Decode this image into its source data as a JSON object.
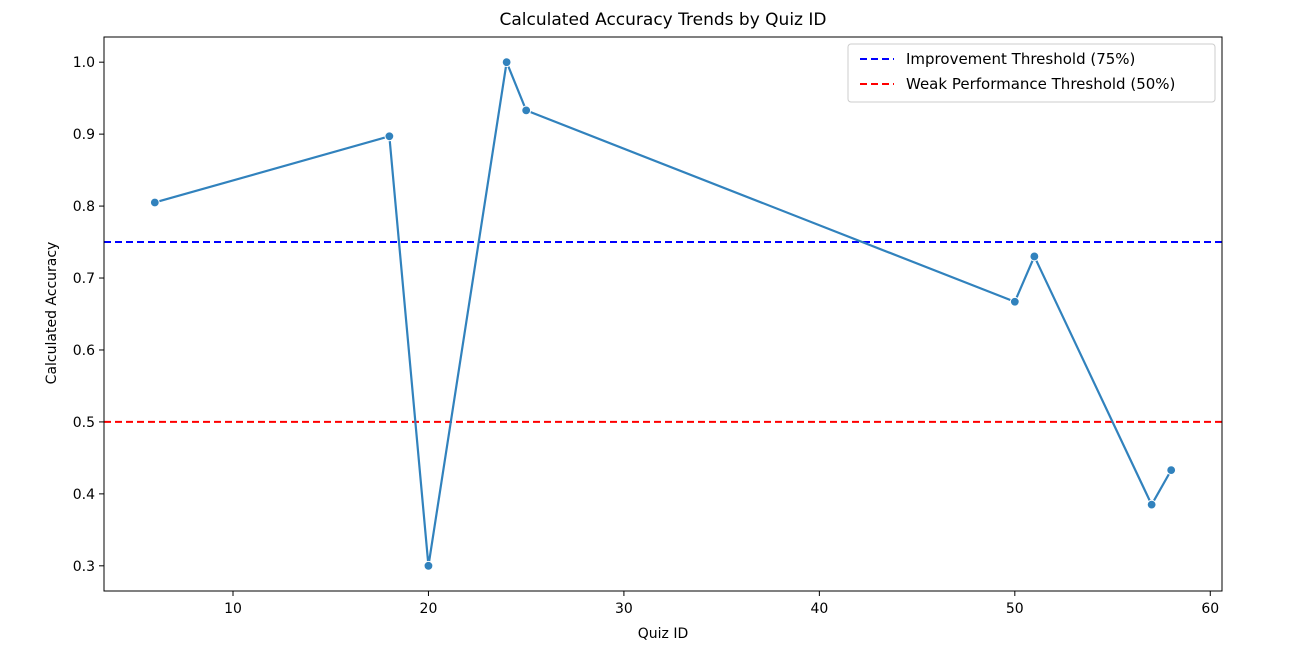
{
  "chart_data": {
    "type": "line",
    "title": "Calculated Accuracy Trends by Quiz ID",
    "xlabel": "Quiz ID",
    "ylabel": "Calculated Accuracy",
    "xlim": [
      3.4,
      60.6
    ],
    "ylim": [
      0.265,
      1.035
    ],
    "xticks": [
      10,
      20,
      30,
      40,
      50,
      60
    ],
    "yticks": [
      0.3,
      0.4,
      0.5,
      0.6,
      0.7,
      0.8,
      0.9,
      1.0
    ],
    "grid": false,
    "legend_position": "top-right",
    "series": [
      {
        "color": "#3182bd",
        "marker": "circle",
        "x": [
          6,
          18,
          20,
          24,
          25,
          50,
          51,
          57,
          58
        ],
        "y": [
          0.805,
          0.897,
          0.3,
          1.0,
          0.933,
          0.667,
          0.73,
          0.385,
          0.433
        ]
      }
    ],
    "reference_lines": [
      {
        "name": "Improvement Threshold (75%)",
        "y": 0.75,
        "color": "#0000ff",
        "style": "dashed"
      },
      {
        "name": "Weak Performance Threshold (50%)",
        "y": 0.5,
        "color": "#ff0000",
        "style": "dashed"
      }
    ]
  }
}
